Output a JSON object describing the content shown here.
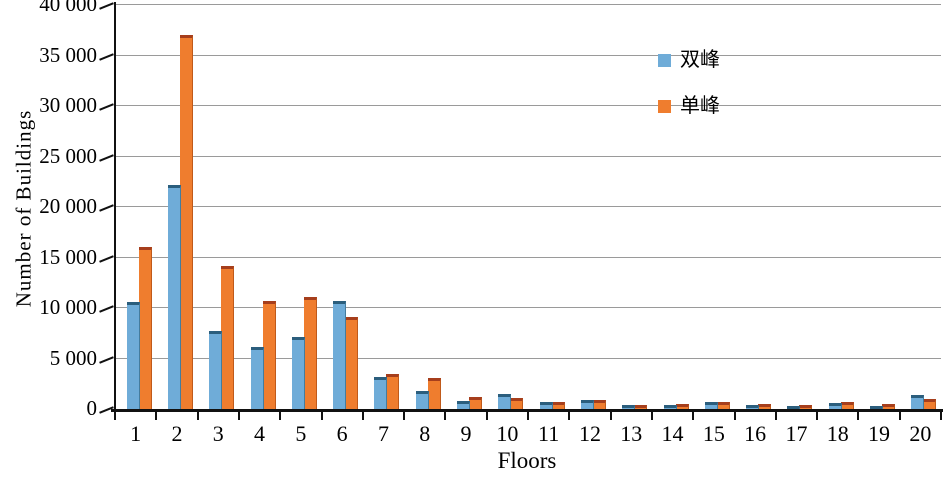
{
  "chart_data": {
    "type": "bar",
    "title": "",
    "xlabel": "Floors",
    "ylabel": "Number of  Buildings",
    "categories": [
      "1",
      "2",
      "3",
      "4",
      "5",
      "6",
      "7",
      "8",
      "9",
      "10",
      "11",
      "12",
      "13",
      "14",
      "15",
      "16",
      "17",
      "18",
      "19",
      "20"
    ],
    "series": [
      {
        "name": "双峰",
        "color": "#6facd8",
        "cap_color": "#2b5e7d",
        "edge_color": "#447c9e",
        "values": [
          10600,
          22200,
          7700,
          6100,
          7100,
          10700,
          3200,
          1800,
          800,
          1500,
          700,
          900,
          400,
          400,
          700,
          400,
          250,
          600,
          300,
          1400
        ]
      },
      {
        "name": "单峰",
        "color": "#ef7d2e",
        "cap_color": "#a63e1c",
        "edge_color": "#c05a1a",
        "values": [
          16000,
          37000,
          14200,
          10700,
          11100,
          9100,
          3500,
          3100,
          1200,
          1100,
          700,
          900,
          400,
          450,
          700,
          450,
          350,
          700,
          450,
          1000
        ]
      }
    ],
    "ylim": [
      0,
      40000
    ],
    "ytick_step": 5000,
    "ytick_labels": [
      "0",
      "5 000",
      "10 000",
      "15 000",
      "20 000",
      "25 000",
      "30 000",
      "35 000",
      "40 000"
    ],
    "grid": true,
    "legend_position": "inside-upper-right",
    "gridline_color": "#9a9a9a",
    "axis_color": "#111111"
  }
}
